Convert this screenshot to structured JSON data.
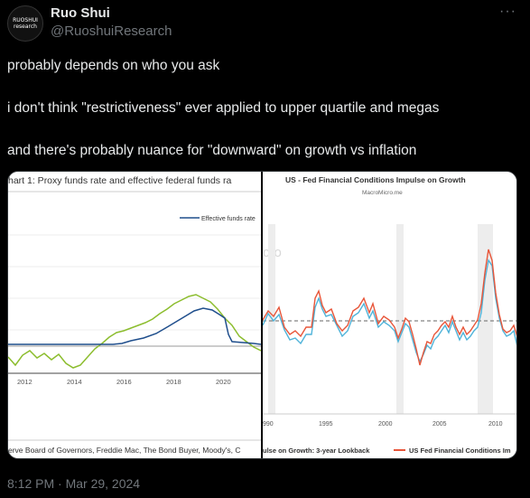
{
  "author": {
    "display_name": "Ruo Shui",
    "handle": "@RuoshuiResearch",
    "avatar_text": "RUOSHUI research"
  },
  "tweet": {
    "lines": [
      "probably depends on who you ask",
      "i don't think \"restrictiveness\" ever applied to upper quartile and megas",
      "and there's probably nuance for \"downward\" on growth vs inflation"
    ],
    "timestamp": "8:12 PM · Mar 29, 2024"
  },
  "more_icon": "more-horizontal-icon",
  "left_chart": {
    "title": "hart 1: Proxy funds rate and effective federal funds ra",
    "legend": "Effective funds rate",
    "x_ticks": [
      "2012",
      "2014",
      "2016",
      "2018",
      "2020"
    ],
    "source": "erve Board of Governors, Freddie Mac, The Bond Buyer, Moody's, C",
    "colors": {
      "effective": "#1f4e8c",
      "proxy": "#8cbd2e"
    }
  },
  "right_chart": {
    "title": "US - Fed Financial Conditions Impulse on Growth",
    "subtitle": "MacroMicro.me",
    "watermark": "cro",
    "x_ticks": [
      "990",
      "1995",
      "2000",
      "2005",
      "2010"
    ],
    "legend": [
      "ulse on Growth: 3-year Lookback",
      "US Fed Financial Conditions Im"
    ],
    "colors": {
      "lookback": "#4fb3d9",
      "fci": "#e8563a"
    }
  }
}
